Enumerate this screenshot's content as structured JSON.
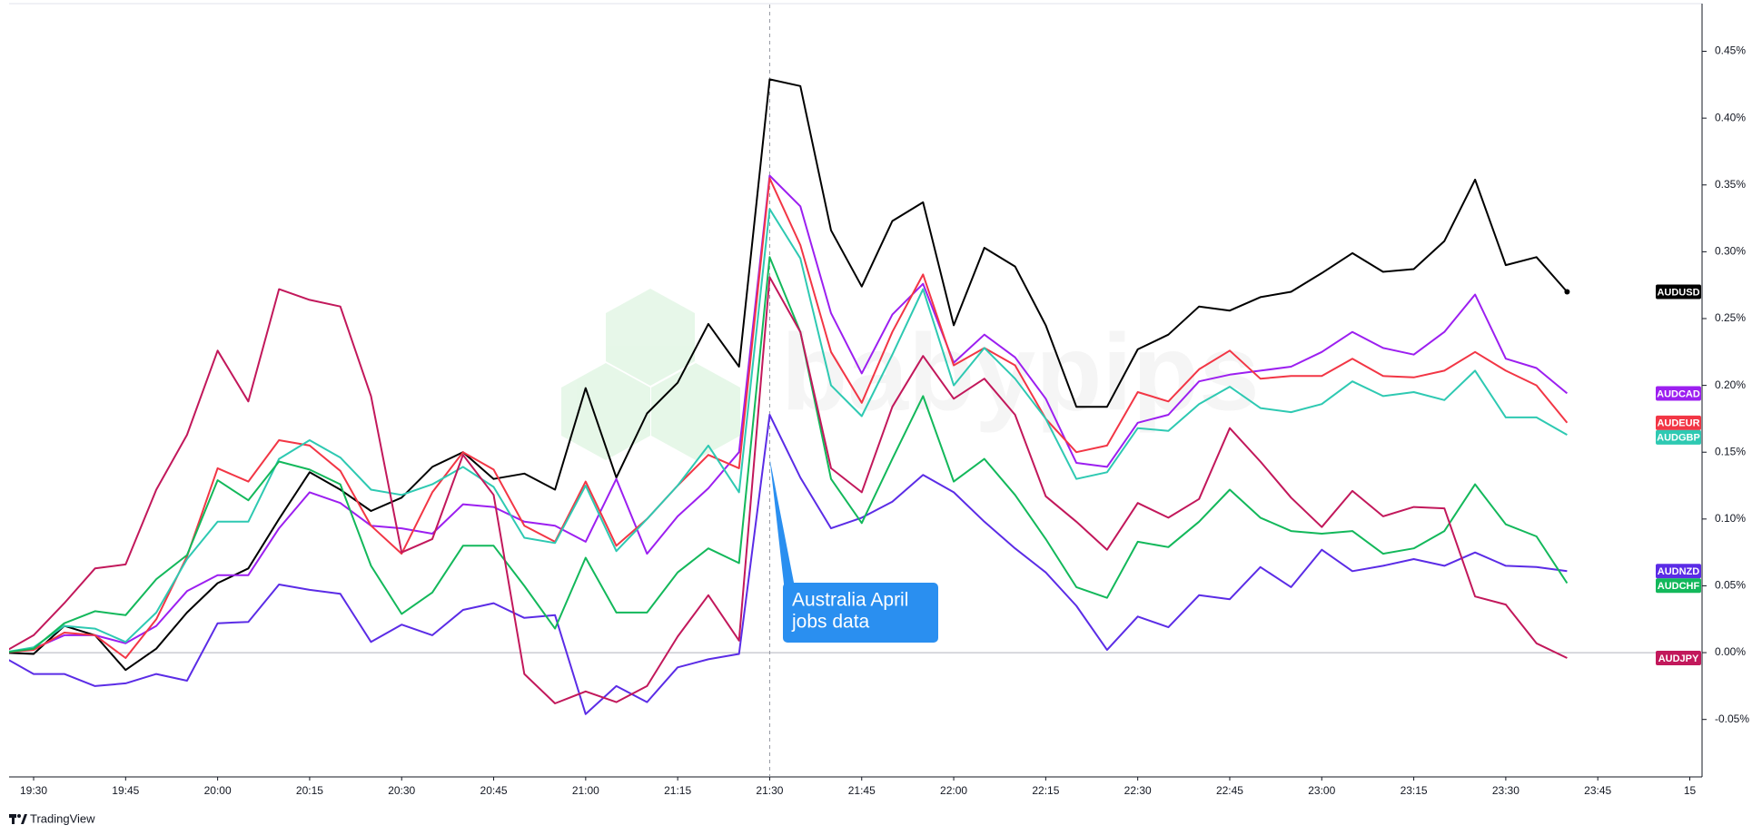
{
  "chart_data": {
    "type": "line",
    "x": [
      "19:25",
      "19:30",
      "19:35",
      "19:40",
      "19:45",
      "19:50",
      "19:55",
      "20:00",
      "20:05",
      "20:10",
      "20:15",
      "20:20",
      "20:25",
      "20:30",
      "20:35",
      "20:40",
      "20:45",
      "20:50",
      "20:55",
      "21:00",
      "21:05",
      "21:10",
      "21:15",
      "21:20",
      "21:25",
      "21:30",
      "21:35",
      "21:40",
      "21:45",
      "21:50",
      "21:55",
      "22:00",
      "22:05",
      "22:10",
      "22:15",
      "22:20",
      "22:25",
      "22:30",
      "22:35",
      "22:40",
      "22:45",
      "22:50",
      "22:55",
      "23:00",
      "23:05",
      "23:10",
      "23:15",
      "23:20",
      "23:25",
      "23:30",
      "23:35",
      "23:40"
    ],
    "xlim": [
      "19:26",
      "00:02"
    ],
    "xticks": [
      "19:30",
      "19:45",
      "20:00",
      "20:15",
      "20:30",
      "20:45",
      "21:00",
      "21:15",
      "21:30",
      "21:45",
      "22:00",
      "22:15",
      "22:30",
      "22:45",
      "23:00",
      "23:15",
      "23:30",
      "23:45",
      {
        "value": "00:00",
        "label": "15"
      }
    ],
    "ylim": [
      -0.093,
      0.485
    ],
    "yticks": [
      {
        "value": -0.05,
        "label": "-0.05%"
      },
      {
        "value": 0,
        "label": "0.00%"
      },
      {
        "value": 0.05,
        "label": "0.05%"
      },
      {
        "value": 0.1,
        "label": "0.10%"
      },
      {
        "value": 0.15,
        "label": "0.15%"
      },
      {
        "value": 0.2,
        "label": "0.20%"
      },
      {
        "value": 0.25,
        "label": "0.25%"
      },
      {
        "value": 0.3,
        "label": "0.30%"
      },
      {
        "value": 0.35,
        "label": "0.35%"
      },
      {
        "value": 0.4,
        "label": "0.40%"
      },
      {
        "value": 0.45,
        "label": "0.45%"
      }
    ],
    "series": [
      {
        "name": "AUDUSD",
        "color": "#000000",
        "values": [
          0,
          -0.001,
          0.02,
          0.013,
          -0.013,
          0.003,
          0.03,
          0.052,
          0.063,
          0.1,
          0.135,
          0.122,
          0.106,
          0.116,
          0.139,
          0.15,
          0.13,
          0.134,
          0.122,
          0.198,
          0.131,
          0.179,
          0.202,
          0.246,
          0.214,
          0.429,
          0.424,
          0.316,
          0.274,
          0.323,
          0.337,
          0.245,
          0.303,
          0.289,
          0.245,
          0.184,
          0.184,
          0.227,
          0.238,
          0.259,
          0.256,
          0.266,
          0.27,
          0.284,
          0.299,
          0.285,
          0.287,
          0.308,
          0.354,
          0.29,
          0.296,
          0.27
        ]
      },
      {
        "name": "AUDCAD",
        "color": "#9c1ff0",
        "values": [
          0,
          0.003,
          0.013,
          0.013,
          0.007,
          0.02,
          0.046,
          0.058,
          0.058,
          0.093,
          0.12,
          0.112,
          0.095,
          0.093,
          0.089,
          0.111,
          0.109,
          0.098,
          0.095,
          0.083,
          0.13,
          0.074,
          0.102,
          0.123,
          0.15,
          0.357,
          0.334,
          0.254,
          0.209,
          0.253,
          0.276,
          0.217,
          0.238,
          0.221,
          0.19,
          0.142,
          0.139,
          0.172,
          0.178,
          0.203,
          0.208,
          0.211,
          0.214,
          0.225,
          0.24,
          0.228,
          0.223,
          0.24,
          0.268,
          0.22,
          0.213,
          0.194
        ]
      },
      {
        "name": "AUDEUR",
        "color": "#f23645",
        "values": [
          0,
          0.002,
          0.015,
          0.013,
          -0.004,
          0.025,
          0.072,
          0.138,
          0.128,
          0.159,
          0.155,
          0.136,
          0.095,
          0.074,
          0.12,
          0.15,
          0.137,
          0.095,
          0.083,
          0.128,
          0.08,
          0.1,
          0.125,
          0.148,
          0.138,
          0.355,
          0.305,
          0.225,
          0.187,
          0.24,
          0.283,
          0.215,
          0.228,
          0.215,
          0.175,
          0.15,
          0.155,
          0.195,
          0.188,
          0.212,
          0.226,
          0.205,
          0.207,
          0.207,
          0.22,
          0.207,
          0.206,
          0.211,
          0.225,
          0.211,
          0.2,
          0.172
        ]
      },
      {
        "name": "AUDGBP",
        "color": "#2ec9b2",
        "values": [
          0,
          0.004,
          0.02,
          0.018,
          0.008,
          0.03,
          0.07,
          0.098,
          0.098,
          0.145,
          0.159,
          0.146,
          0.122,
          0.118,
          0.126,
          0.139,
          0.124,
          0.086,
          0.082,
          0.125,
          0.076,
          0.1,
          0.125,
          0.155,
          0.12,
          0.332,
          0.295,
          0.2,
          0.177,
          0.223,
          0.272,
          0.2,
          0.228,
          0.205,
          0.175,
          0.13,
          0.135,
          0.168,
          0.166,
          0.186,
          0.199,
          0.183,
          0.18,
          0.186,
          0.203,
          0.192,
          0.195,
          0.189,
          0.211,
          0.176,
          0.176,
          0.163
        ]
      },
      {
        "name": "AUDNZD",
        "color": "#5b2ce6",
        "values": [
          -0.003,
          -0.016,
          -0.016,
          -0.025,
          -0.023,
          -0.016,
          -0.021,
          0.022,
          0.023,
          0.051,
          0.047,
          0.044,
          0.008,
          0.021,
          0.013,
          0.032,
          0.037,
          0.026,
          0.028,
          -0.046,
          -0.025,
          -0.037,
          -0.011,
          -0.005,
          -0.001,
          0.178,
          0.131,
          0.093,
          0.101,
          0.113,
          0.133,
          0.12,
          0.098,
          0.078,
          0.06,
          0.035,
          0.002,
          0.027,
          0.019,
          0.043,
          0.04,
          0.064,
          0.049,
          0.077,
          0.061,
          0.065,
          0.07,
          0.065,
          0.075,
          0.065,
          0.064,
          0.061
        ]
      },
      {
        "name": "AUDCHF",
        "color": "#13b85b",
        "values": [
          0,
          0.003,
          0.022,
          0.031,
          0.028,
          0.055,
          0.073,
          0.129,
          0.114,
          0.143,
          0.137,
          0.126,
          0.065,
          0.029,
          0.045,
          0.08,
          0.08,
          0.05,
          0.018,
          0.071,
          0.03,
          0.03,
          0.06,
          0.078,
          0.067,
          0.296,
          0.24,
          0.13,
          0.097,
          0.145,
          0.192,
          0.128,
          0.145,
          0.118,
          0.085,
          0.049,
          0.041,
          0.083,
          0.079,
          0.098,
          0.122,
          0.101,
          0.091,
          0.089,
          0.091,
          0.074,
          0.078,
          0.091,
          0.126,
          0.096,
          0.087,
          0.052
        ]
      },
      {
        "name": "AUDJPY",
        "color": "#c2185b",
        "values": [
          0,
          0.013,
          0.037,
          0.063,
          0.066,
          0.122,
          0.163,
          0.226,
          0.188,
          0.272,
          0.264,
          0.259,
          0.192,
          0.075,
          0.085,
          0.148,
          0.118,
          -0.016,
          -0.038,
          -0.029,
          -0.037,
          -0.025,
          0.012,
          0.043,
          0.009,
          0.281,
          0.24,
          0.138,
          0.12,
          0.184,
          0.222,
          0.19,
          0.205,
          0.178,
          0.117,
          0.098,
          0.077,
          0.112,
          0.101,
          0.115,
          0.168,
          0.143,
          0.116,
          0.094,
          0.121,
          0.102,
          0.109,
          0.108,
          0.042,
          0.036,
          0.007,
          -0.004
        ]
      }
    ],
    "annotation": {
      "x": "21:30",
      "lines": [
        "Australia April",
        "jobs data"
      ]
    },
    "watermark": "babypips",
    "footer": "TradingView"
  }
}
